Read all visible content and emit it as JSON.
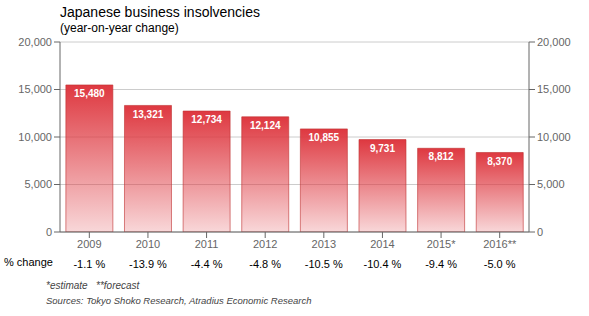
{
  "chart_data": {
    "type": "bar",
    "title": "Japanese business insolvencies",
    "subtitle": "(year-on-year change)",
    "categories": [
      "2009",
      "2010",
      "2011",
      "2012",
      "2013",
      "2014",
      "2015*",
      "2016**"
    ],
    "values": [
      15480,
      13321,
      12734,
      12124,
      10855,
      9731,
      8812,
      8370
    ],
    "value_labels": [
      "15,480",
      "13,321",
      "12,734",
      "12,124",
      "10,855",
      "9,731",
      "8,812",
      "8,370"
    ],
    "data_labels": true,
    "color": "#de3840",
    "ylim": [
      0,
      20000
    ],
    "yticks": [
      0,
      {
        "value": 5000,
        "label": "5,000"
      },
      {
        "value": 10000,
        "label": "10,000"
      },
      {
        "value": 15000,
        "label": "15,000"
      },
      {
        "value": 20000,
        "label": "20,000"
      }
    ],
    "y2lim": [
      0,
      20000
    ],
    "y2ticks": [
      0,
      {
        "value": 5000,
        "label": "5,000"
      },
      {
        "value": 10000,
        "label": "10,000"
      },
      {
        "value": 15000,
        "label": "15,000"
      },
      {
        "value": 20000,
        "label": "20,000"
      }
    ],
    "grid": true,
    "pct_label": "% change",
    "pct_changes": [
      "-1.1 %",
      "-13.9 %",
      "-4.4 %",
      "-4.8 %",
      "-10.5 %",
      "-10.4 %",
      "-9.4 %",
      "-5.0 %"
    ],
    "annotations": [
      "*estimate   **forecast",
      "Sources: Tokyo Shoko Research, Atradius Economic Research"
    ]
  }
}
